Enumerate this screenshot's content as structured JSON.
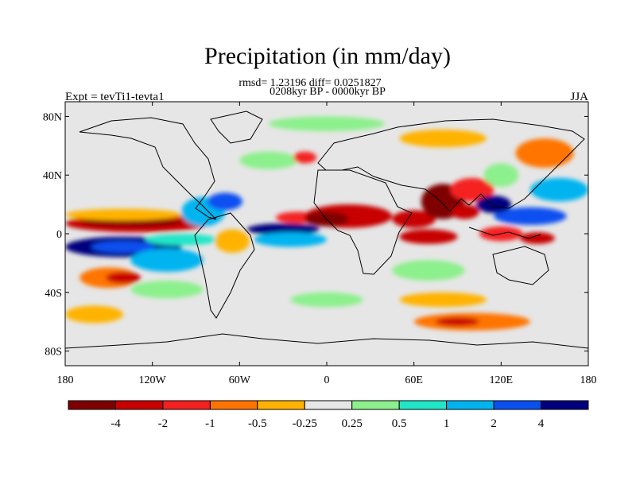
{
  "chart_data": {
    "type": "heatmap",
    "title": "Precipitation (in mm/day)",
    "stats": "rmsd= 1.23196 diff= 0.0251827",
    "subtitle": "0208kyr BP - 0000kyr BP",
    "left_label": "Expt = tevTi1-tevta1",
    "right_label": "JJA",
    "xlim": [
      -180,
      180
    ],
    "ylim": [
      -90,
      90
    ],
    "x_ticks": [
      {
        "value": -180,
        "label": "180"
      },
      {
        "value": -120,
        "label": "120W"
      },
      {
        "value": -60,
        "label": "60W"
      },
      {
        "value": 0,
        "label": "0"
      },
      {
        "value": 60,
        "label": "60E"
      },
      {
        "value": 120,
        "label": "120E"
      },
      {
        "value": 180,
        "label": "180"
      }
    ],
    "y_ticks": [
      {
        "value": 80,
        "label": "80N"
      },
      {
        "value": 40,
        "label": "40N"
      },
      {
        "value": 0,
        "label": "0"
      },
      {
        "value": -40,
        "label": "40S"
      },
      {
        "value": -80,
        "label": "80S"
      }
    ],
    "colorbar": {
      "colors": [
        "#7f0000",
        "#c80000",
        "#f52020",
        "#ff7400",
        "#ffb300",
        "#e6e6e6",
        "#8cf08c",
        "#20e6c8",
        "#00b4f0",
        "#0a50f0",
        "#00007f"
      ],
      "labels": [
        "-4",
        "-2",
        "-1",
        "-0.5",
        "-0.25",
        "0.25",
        "0.5",
        "1",
        "2",
        "4"
      ]
    },
    "blobs": [
      {
        "region": "central Pacific ITCZ",
        "lon": -130,
        "lat": 7,
        "rx": 50,
        "ry": 6,
        "level": 1
      },
      {
        "region": "central Pacific ITCZ core",
        "lon": -135,
        "lat": 8,
        "rx": 35,
        "ry": 3,
        "level": 0
      },
      {
        "region": "tropical Pacific north flank",
        "lon": -140,
        "lat": 13,
        "rx": 40,
        "ry": 4,
        "level": 4
      },
      {
        "region": "south Pacific",
        "lon": -140,
        "lat": -9,
        "rx": 40,
        "ry": 7,
        "level": 10
      },
      {
        "region": "south Pacific core",
        "lon": -140,
        "lat": -9,
        "rx": 22,
        "ry": 4,
        "level": 9
      },
      {
        "region": "SPCZ",
        "lon": -110,
        "lat": -18,
        "rx": 25,
        "ry": 8,
        "level": 8
      },
      {
        "region": "east Pacific",
        "lon": -100,
        "lat": -4,
        "rx": 25,
        "ry": 4,
        "level": 7
      },
      {
        "region": "south Pacific subtropics",
        "lon": -150,
        "lat": -30,
        "rx": 20,
        "ry": 7,
        "level": 3
      },
      {
        "region": "south Pacific subtropics core",
        "lon": -140,
        "lat": -30,
        "rx": 12,
        "ry": 4,
        "level": 1
      },
      {
        "region": "southern Pacific band",
        "lon": -110,
        "lat": -38,
        "rx": 25,
        "ry": 6,
        "level": 6
      },
      {
        "region": "southern ocean west",
        "lon": -160,
        "lat": -55,
        "rx": 20,
        "ry": 6,
        "level": 4
      },
      {
        "region": "Central America",
        "lon": -85,
        "lat": 15,
        "rx": 15,
        "ry": 10,
        "level": 8
      },
      {
        "region": "Caribbean",
        "lon": -70,
        "lat": 22,
        "rx": 12,
        "ry": 6,
        "level": 9
      },
      {
        "region": "Atlantic ITCZ",
        "lon": -30,
        "lat": 3,
        "rx": 25,
        "ry": 4,
        "level": 10
      },
      {
        "region": "Atlantic ITCZ south",
        "lon": -25,
        "lat": -4,
        "rx": 25,
        "ry": 5,
        "level": 8
      },
      {
        "region": "Atlantic north",
        "lon": -20,
        "lat": 11,
        "rx": 15,
        "ry": 4,
        "level": 2
      },
      {
        "region": "Amazon",
        "lon": -65,
        "lat": -5,
        "rx": 12,
        "ry": 8,
        "level": 4
      },
      {
        "region": "Sahel",
        "lon": 15,
        "lat": 12,
        "rx": 30,
        "ry": 8,
        "level": 1
      },
      {
        "region": "west Africa",
        "lon": 0,
        "lat": 10,
        "rx": 15,
        "ry": 5,
        "level": 0
      },
      {
        "region": "Arabian Sea",
        "lon": 60,
        "lat": 10,
        "rx": 15,
        "ry": 6,
        "level": 1
      },
      {
        "region": "India",
        "lon": 80,
        "lat": 22,
        "rx": 15,
        "ry": 12,
        "level": 0
      },
      {
        "region": "south Asia",
        "lon": 100,
        "lat": 30,
        "rx": 15,
        "ry": 8,
        "level": 2
      },
      {
        "region": "Bay of Bengal",
        "lon": 95,
        "lat": 15,
        "rx": 10,
        "ry": 5,
        "level": 1
      },
      {
        "region": "Indian Ocean equatorial",
        "lon": 70,
        "lat": -2,
        "rx": 20,
        "ry": 5,
        "level": 1
      },
      {
        "region": "western Pacific warm pool",
        "lon": 140,
        "lat": 12,
        "rx": 25,
        "ry": 6,
        "level": 9
      },
      {
        "region": "South China Sea",
        "lon": 115,
        "lat": 20,
        "rx": 12,
        "ry": 6,
        "level": 10
      },
      {
        "region": "Maritime Continent",
        "lon": 120,
        "lat": 0,
        "rx": 15,
        "ry": 5,
        "level": 2
      },
      {
        "region": "New Guinea",
        "lon": 145,
        "lat": -3,
        "rx": 12,
        "ry": 4,
        "level": 1
      },
      {
        "region": "northwest Pacific",
        "lon": 160,
        "lat": 30,
        "rx": 20,
        "ry": 8,
        "level": 8
      },
      {
        "region": "north Pacific high latitudes",
        "lon": 150,
        "lat": 55,
        "rx": 20,
        "ry": 10,
        "level": 3
      },
      {
        "region": "East Asia",
        "lon": 120,
        "lat": 40,
        "rx": 12,
        "ry": 8,
        "level": 6
      },
      {
        "region": "north Atlantic",
        "lon": -40,
        "lat": 50,
        "rx": 20,
        "ry": 6,
        "level": 6
      },
      {
        "region": "north Atlantic east",
        "lon": -15,
        "lat": 52,
        "rx": 8,
        "ry": 4,
        "level": 2
      },
      {
        "region": "Indian Ocean south",
        "lon": 70,
        "lat": -25,
        "rx": 25,
        "ry": 7,
        "level": 6
      },
      {
        "region": "southern Indian Ocean",
        "lon": 80,
        "lat": -45,
        "rx": 30,
        "ry": 5,
        "level": 4
      },
      {
        "region": "southern Atlantic",
        "lon": 0,
        "lat": -45,
        "rx": 25,
        "ry": 5,
        "level": 6
      },
      {
        "region": "Southern Ocean band",
        "lon": 100,
        "lat": -60,
        "rx": 40,
        "ry": 6,
        "level": 3
      },
      {
        "region": "Southern Ocean band core",
        "lon": 90,
        "lat": -60,
        "rx": 15,
        "ry": 3,
        "level": 1
      },
      {
        "region": "Arctic",
        "lon": 0,
        "lat": 75,
        "rx": 40,
        "ry": 5,
        "level": 6
      },
      {
        "region": "Siberia",
        "lon": 80,
        "lat": 65,
        "rx": 30,
        "ry": 6,
        "level": 4
      }
    ]
  }
}
